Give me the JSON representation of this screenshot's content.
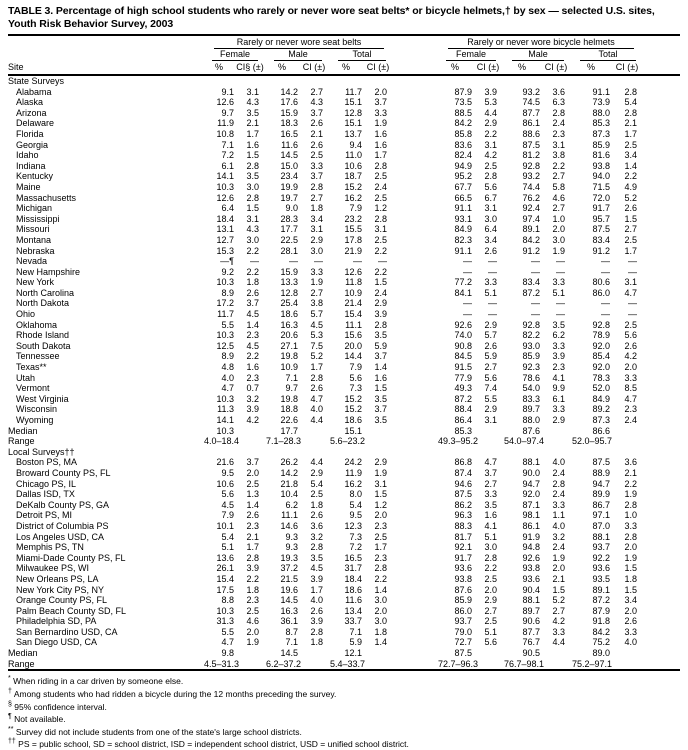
{
  "title": "TABLE 3. Percentage of high school students who rarely or never wore seat belts* or bicycle helmets,† by sex — selected U.S. sites, Youth Risk Behavior Survey, 2003",
  "header": {
    "site_label": "Site",
    "groups": [
      "Rarely or never wore seat belts",
      "Rarely or never wore bicycle helmets"
    ],
    "subgroups": [
      "Female",
      "Male",
      "Total"
    ],
    "units": [
      "%",
      "CI§ (±)",
      "%",
      "CI (±)",
      "%",
      "CI (±)",
      "%",
      "CI (±)",
      "%",
      "CI (±)",
      "%",
      "CI (±)"
    ]
  },
  "median_label": "Median",
  "range_label": "Range",
  "sections": [
    {
      "name": "State Surveys",
      "rows": [
        {
          "site": "Alabama",
          "v": [
            "9.1",
            "3.1",
            "14.2",
            "2.7",
            "11.7",
            "2.0",
            "87.9",
            "3.9",
            "93.2",
            "3.6",
            "91.1",
            "2.8"
          ]
        },
        {
          "site": "Alaska",
          "v": [
            "12.6",
            "4.3",
            "17.6",
            "4.3",
            "15.1",
            "3.7",
            "73.5",
            "5.3",
            "74.5",
            "6.3",
            "73.9",
            "5.4"
          ]
        },
        {
          "site": "Arizona",
          "v": [
            "9.7",
            "3.5",
            "15.9",
            "3.7",
            "12.8",
            "3.3",
            "88.5",
            "4.4",
            "87.7",
            "2.8",
            "88.0",
            "2.8"
          ]
        },
        {
          "site": "Delaware",
          "v": [
            "11.9",
            "2.1",
            "18.3",
            "2.6",
            "15.1",
            "1.9",
            "84.2",
            "2.9",
            "86.1",
            "2.4",
            "85.3",
            "2.1"
          ]
        },
        {
          "site": "Florida",
          "v": [
            "10.8",
            "1.7",
            "16.5",
            "2.1",
            "13.7",
            "1.6",
            "85.8",
            "2.2",
            "88.6",
            "2.3",
            "87.3",
            "1.7"
          ]
        },
        {
          "site": "Georgia",
          "v": [
            "7.1",
            "1.6",
            "11.6",
            "2.6",
            "9.4",
            "1.6",
            "83.6",
            "3.1",
            "87.5",
            "3.1",
            "85.9",
            "2.5"
          ]
        },
        {
          "site": "Idaho",
          "v": [
            "7.2",
            "1.5",
            "14.5",
            "2.5",
            "11.0",
            "1.7",
            "82.4",
            "4.2",
            "81.2",
            "3.8",
            "81.6",
            "3.4"
          ]
        },
        {
          "site": "Indiana",
          "v": [
            "6.1",
            "2.8",
            "15.0",
            "3.3",
            "10.6",
            "2.8",
            "94.9",
            "2.5",
            "92.8",
            "2.2",
            "93.8",
            "1.4"
          ]
        },
        {
          "site": "Kentucky",
          "v": [
            "14.1",
            "3.5",
            "23.4",
            "3.7",
            "18.7",
            "2.5",
            "95.2",
            "2.8",
            "93.2",
            "2.7",
            "94.0",
            "2.2"
          ]
        },
        {
          "site": "Maine",
          "v": [
            "10.3",
            "3.0",
            "19.9",
            "2.8",
            "15.2",
            "2.4",
            "67.7",
            "5.6",
            "74.4",
            "5.8",
            "71.5",
            "4.9"
          ]
        },
        {
          "site": "Massachusetts",
          "v": [
            "12.6",
            "2.8",
            "19.7",
            "2.7",
            "16.2",
            "2.5",
            "66.5",
            "6.7",
            "76.2",
            "4.6",
            "72.0",
            "5.2"
          ]
        },
        {
          "site": "Michigan",
          "v": [
            "6.4",
            "1.5",
            "9.0",
            "1.8",
            "7.9",
            "1.2",
            "91.1",
            "3.1",
            "92.4",
            "2.7",
            "91.7",
            "2.6"
          ]
        },
        {
          "site": "Mississippi",
          "v": [
            "18.4",
            "3.1",
            "28.3",
            "3.4",
            "23.2",
            "2.8",
            "93.1",
            "3.0",
            "97.4",
            "1.0",
            "95.7",
            "1.5"
          ]
        },
        {
          "site": "Missouri",
          "v": [
            "13.1",
            "4.3",
            "17.7",
            "3.1",
            "15.5",
            "3.1",
            "84.9",
            "6.4",
            "89.1",
            "2.0",
            "87.5",
            "2.7"
          ]
        },
        {
          "site": "Montana",
          "v": [
            "12.7",
            "3.0",
            "22.5",
            "2.9",
            "17.8",
            "2.5",
            "82.3",
            "3.4",
            "84.2",
            "3.0",
            "83.4",
            "2.5"
          ]
        },
        {
          "site": "Nebraska",
          "v": [
            "15.3",
            "2.2",
            "28.1",
            "3.0",
            "21.9",
            "2.2",
            "91.1",
            "2.6",
            "91.2",
            "1.9",
            "91.2",
            "1.7"
          ]
        },
        {
          "site": "Nevada",
          "v": [
            "—¶",
            "—",
            "—",
            "—",
            "—",
            "—",
            "—",
            "—",
            "—",
            "—",
            "—",
            "—"
          ]
        },
        {
          "site": "New Hampshire",
          "v": [
            "9.2",
            "2.2",
            "15.9",
            "3.3",
            "12.6",
            "2.2",
            "—",
            "—",
            "—",
            "—",
            "—",
            "—"
          ]
        },
        {
          "site": "New York",
          "v": [
            "10.3",
            "1.8",
            "13.3",
            "1.9",
            "11.8",
            "1.5",
            "77.2",
            "3.3",
            "83.4",
            "3.3",
            "80.6",
            "3.1"
          ]
        },
        {
          "site": "North Carolina",
          "v": [
            "8.9",
            "2.6",
            "12.8",
            "2.7",
            "10.9",
            "2.4",
            "84.1",
            "5.1",
            "87.2",
            "5.1",
            "86.0",
            "4.7"
          ]
        },
        {
          "site": "North Dakota",
          "v": [
            "17.2",
            "3.7",
            "25.4",
            "3.8",
            "21.4",
            "2.9",
            "—",
            "—",
            "—",
            "—",
            "—",
            "—"
          ]
        },
        {
          "site": "Ohio",
          "v": [
            "11.7",
            "4.5",
            "18.6",
            "5.7",
            "15.4",
            "3.9",
            "—",
            "—",
            "—",
            "—",
            "—",
            "—"
          ]
        },
        {
          "site": "Oklahoma",
          "v": [
            "5.5",
            "1.4",
            "16.3",
            "4.5",
            "11.1",
            "2.8",
            "92.6",
            "2.9",
            "92.8",
            "3.5",
            "92.8",
            "2.5"
          ]
        },
        {
          "site": "Rhode Island",
          "v": [
            "10.3",
            "2.3",
            "20.6",
            "5.3",
            "15.6",
            "3.5",
            "74.0",
            "5.7",
            "82.2",
            "6.2",
            "78.9",
            "5.6"
          ]
        },
        {
          "site": "South Dakota",
          "v": [
            "12.5",
            "4.5",
            "27.1",
            "7.5",
            "20.0",
            "5.9",
            "90.8",
            "2.6",
            "93.0",
            "3.3",
            "92.0",
            "2.6"
          ]
        },
        {
          "site": "Tennessee",
          "v": [
            "8.9",
            "2.2",
            "19.8",
            "5.2",
            "14.4",
            "3.7",
            "84.5",
            "5.9",
            "85.9",
            "3.9",
            "85.4",
            "4.2"
          ]
        },
        {
          "site": "Texas**",
          "v": [
            "4.8",
            "1.6",
            "10.9",
            "1.7",
            "7.9",
            "1.4",
            "91.5",
            "2.7",
            "92.3",
            "2.3",
            "92.0",
            "2.0"
          ]
        },
        {
          "site": "Utah",
          "v": [
            "4.0",
            "2.3",
            "7.1",
            "2.8",
            "5.6",
            "1.6",
            "77.9",
            "5.6",
            "78.6",
            "4.1",
            "78.3",
            "3.3"
          ]
        },
        {
          "site": "Vermont",
          "v": [
            "4.7",
            "0.7",
            "9.7",
            "2.6",
            "7.3",
            "1.5",
            "49.3",
            "7.4",
            "54.0",
            "9.9",
            "52.0",
            "8.5"
          ]
        },
        {
          "site": "West Virginia",
          "v": [
            "10.3",
            "3.2",
            "19.8",
            "4.7",
            "15.2",
            "3.5",
            "87.2",
            "5.5",
            "83.3",
            "6.1",
            "84.9",
            "4.7"
          ]
        },
        {
          "site": "Wisconsin",
          "v": [
            "11.3",
            "3.9",
            "18.8",
            "4.0",
            "15.2",
            "3.7",
            "88.4",
            "2.9",
            "89.7",
            "3.3",
            "89.2",
            "2.3"
          ]
        },
        {
          "site": "Wyoming",
          "v": [
            "14.1",
            "4.2",
            "22.6",
            "4.4",
            "18.6",
            "3.5",
            "86.4",
            "3.1",
            "88.0",
            "2.9",
            "87.3",
            "2.4"
          ]
        }
      ],
      "median": [
        "10.3",
        "17.7",
        "15.1",
        "85.3",
        "87.6",
        "86.6"
      ],
      "range": [
        "4.0–18.4",
        "7.1–28.3",
        "5.6–23.2",
        "49.3–95.2",
        "54.0–97.4",
        "52.0–95.7"
      ]
    },
    {
      "name": "Local Surveys††",
      "rows": [
        {
          "site": "Boston PS, MA",
          "v": [
            "21.6",
            "3.7",
            "26.2",
            "4.4",
            "24.2",
            "2.9",
            "86.8",
            "4.7",
            "88.1",
            "4.0",
            "87.5",
            "3.6"
          ]
        },
        {
          "site": "Broward County PS, FL",
          "v": [
            "9.5",
            "2.0",
            "14.2",
            "2.9",
            "11.9",
            "1.9",
            "87.4",
            "3.7",
            "90.0",
            "2.4",
            "88.9",
            "2.1"
          ]
        },
        {
          "site": "Chicago PS, IL",
          "v": [
            "10.6",
            "2.5",
            "21.8",
            "5.4",
            "16.2",
            "3.1",
            "94.6",
            "2.7",
            "94.7",
            "2.8",
            "94.7",
            "2.2"
          ]
        },
        {
          "site": "Dallas ISD, TX",
          "v": [
            "5.6",
            "1.3",
            "10.4",
            "2.5",
            "8.0",
            "1.5",
            "87.5",
            "3.3",
            "92.0",
            "2.4",
            "89.9",
            "1.9"
          ]
        },
        {
          "site": "DeKalb County PS, GA",
          "v": [
            "4.5",
            "1.4",
            "6.2",
            "1.8",
            "5.4",
            "1.2",
            "86.2",
            "3.5",
            "87.1",
            "3.3",
            "86.7",
            "2.8"
          ]
        },
        {
          "site": "Detroit PS, MI",
          "v": [
            "7.9",
            "2.6",
            "11.1",
            "2.6",
            "9.5",
            "2.0",
            "96.3",
            "1.6",
            "98.1",
            "1.1",
            "97.1",
            "1.0"
          ]
        },
        {
          "site": "District of Columbia PS",
          "v": [
            "10.1",
            "2.3",
            "14.6",
            "3.6",
            "12.3",
            "2.3",
            "88.3",
            "4.1",
            "86.1",
            "4.0",
            "87.0",
            "3.3"
          ]
        },
        {
          "site": "Los Angeles USD, CA",
          "v": [
            "5.4",
            "2.1",
            "9.3",
            "3.2",
            "7.3",
            "2.5",
            "81.7",
            "5.1",
            "91.9",
            "3.2",
            "88.1",
            "2.8"
          ]
        },
        {
          "site": "Memphis PS, TN",
          "v": [
            "5.1",
            "1.7",
            "9.3",
            "2.8",
            "7.2",
            "1.7",
            "92.1",
            "3.0",
            "94.8",
            "2.4",
            "93.7",
            "2.0"
          ]
        },
        {
          "site": "Miami-Dade County PS, FL",
          "v": [
            "13.6",
            "2.8",
            "19.3",
            "3.5",
            "16.5",
            "2.3",
            "91.7",
            "2.8",
            "92.6",
            "1.9",
            "92.2",
            "1.9"
          ]
        },
        {
          "site": "Milwaukee PS, WI",
          "v": [
            "26.1",
            "3.9",
            "37.2",
            "4.5",
            "31.7",
            "2.8",
            "93.6",
            "2.2",
            "93.8",
            "2.0",
            "93.6",
            "1.5"
          ]
        },
        {
          "site": "New Orleans PS, LA",
          "v": [
            "15.4",
            "2.2",
            "21.5",
            "3.9",
            "18.4",
            "2.2",
            "93.8",
            "2.5",
            "93.6",
            "2.1",
            "93.5",
            "1.8"
          ]
        },
        {
          "site": "New York City PS, NY",
          "v": [
            "17.5",
            "1.8",
            "19.6",
            "1.7",
            "18.6",
            "1.4",
            "87.6",
            "2.0",
            "90.4",
            "1.5",
            "89.1",
            "1.5"
          ]
        },
        {
          "site": "Orange County PS, FL",
          "v": [
            "8.8",
            "2.3",
            "14.5",
            "4.0",
            "11.6",
            "3.0",
            "85.9",
            "2.9",
            "88.1",
            "5.2",
            "87.2",
            "3.4"
          ]
        },
        {
          "site": "Palm Beach County SD, FL",
          "v": [
            "10.3",
            "2.5",
            "16.3",
            "2.6",
            "13.4",
            "2.0",
            "86.0",
            "2.7",
            "89.7",
            "2.7",
            "87.9",
            "2.0"
          ]
        },
        {
          "site": "Philadelphia SD, PA",
          "v": [
            "31.3",
            "4.6",
            "36.1",
            "3.9",
            "33.7",
            "3.0",
            "93.7",
            "2.5",
            "90.6",
            "4.2",
            "91.8",
            "2.6"
          ]
        },
        {
          "site": "San Bernardino USD, CA",
          "v": [
            "5.5",
            "2.0",
            "8.7",
            "2.8",
            "7.1",
            "1.8",
            "79.0",
            "5.1",
            "87.7",
            "3.3",
            "84.2",
            "3.3"
          ]
        },
        {
          "site": "San Diego USD, CA",
          "v": [
            "4.7",
            "1.9",
            "7.1",
            "1.8",
            "5.9",
            "1.4",
            "72.7",
            "5.6",
            "76.7",
            "4.4",
            "75.2",
            "4.0"
          ]
        }
      ],
      "median": [
        "9.8",
        "14.5",
        "12.1",
        "87.5",
        "90.5",
        "89.0"
      ],
      "range": [
        "4.5–31.3",
        "6.2–37.2",
        "5.4–33.7",
        "72.7–96.3",
        "76.7–98.1",
        "75.2–97.1"
      ]
    }
  ],
  "footnotes": [
    {
      "sym": "*",
      "text": "When riding in a car driven by someone else."
    },
    {
      "sym": "†",
      "text": "Among students who had ridden a bicycle during the 12 months preceding the survey."
    },
    {
      "sym": "§",
      "text": "95% confidence interval."
    },
    {
      "sym": "¶",
      "text": "Not available."
    },
    {
      "sym": "**",
      "text": "Survey did not include students from one of the state's large school districts."
    },
    {
      "sym": "††",
      "text": "PS = public school, SD = school district, ISD = independent school district, USD = unified school district."
    }
  ]
}
